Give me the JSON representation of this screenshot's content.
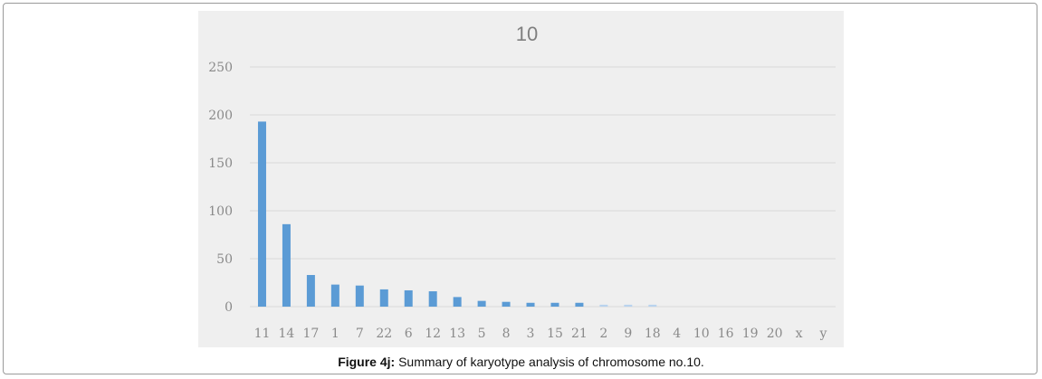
{
  "figure": {
    "caption_label": "Figure 4j:",
    "caption_text": " Summary of karyotype analysis of chromosome no.10."
  },
  "colors": {
    "bar": "#5b9bd5",
    "bar_faint": "#b9d3ee",
    "grid": "#d9d9d9",
    "panel": "#efefef",
    "text": "#8a8a8a"
  },
  "chart_data": {
    "type": "bar",
    "title": "10",
    "xlabel": "",
    "ylabel": "",
    "ylim": [
      0,
      250
    ],
    "yticks": [
      0,
      50,
      100,
      150,
      200,
      250
    ],
    "grid": true,
    "legend": "none",
    "categories": [
      "11",
      "14",
      "17",
      "1",
      "7",
      "22",
      "6",
      "12",
      "13",
      "5",
      "8",
      "3",
      "15",
      "21",
      "2",
      "9",
      "18",
      "4",
      "10",
      "16",
      "19",
      "20",
      "x",
      "y"
    ],
    "values": [
      193,
      86,
      33,
      23,
      22,
      18,
      17,
      16,
      10,
      6,
      5,
      4,
      4,
      4,
      2,
      2,
      2,
      0,
      0,
      0,
      0,
      0,
      0,
      0
    ]
  }
}
